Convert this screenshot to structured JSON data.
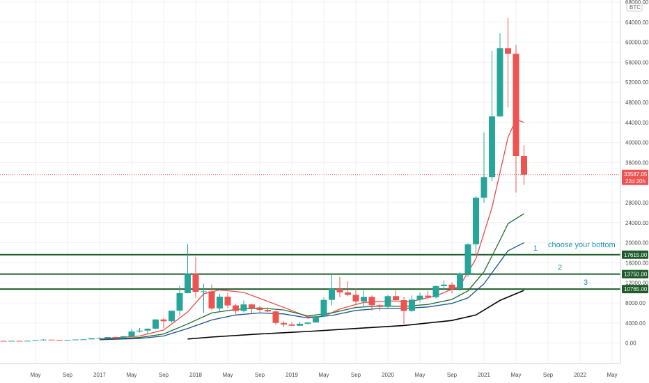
{
  "chart_data": {
    "type": "candlestick",
    "symbol": "BTC",
    "y_scale": "log",
    "ylim": [
      -2000,
      68000
    ],
    "grid": true,
    "y_ticks": [
      0,
      4000,
      8000,
      12000,
      16000,
      20000,
      24000,
      28000,
      32000,
      36000,
      40000,
      44000,
      48000,
      52000,
      56000,
      60000,
      64000,
      68000
    ],
    "y_tick_labels": [
      "0.00",
      "4000.00",
      "8000.00",
      "12000.00",
      "16000.00",
      "20000.00",
      "24000.00",
      "28000.00",
      "32000.00",
      "36000.00",
      "40000.00",
      "44000.00",
      "48000.00",
      "52000.00",
      "56000.00",
      "60000.00",
      "64000.00",
      "68000.00"
    ],
    "x_tick_labels": [
      "May",
      "Sep",
      "2017",
      "May",
      "Sep",
      "2018",
      "May",
      "Sep",
      "2019",
      "May",
      "Sep",
      "2020",
      "May",
      "Sep",
      "2021",
      "May",
      "Sep",
      "2022",
      "May"
    ],
    "x_ticks": [
      "2016-05",
      "2016-09",
      "2017-01",
      "2017-05",
      "2017-09",
      "2018-01",
      "2018-05",
      "2018-09",
      "2019-01",
      "2019-05",
      "2019-09",
      "2020-01",
      "2020-05",
      "2020-09",
      "2021-01",
      "2021-05",
      "2021-09",
      "2022-01",
      "2022-05"
    ],
    "x_range": [
      "2016-01",
      "2022-05"
    ],
    "candles": [
      {
        "date": "2016-01",
        "open": 430,
        "high": 460,
        "low": 360,
        "close": 370
      },
      {
        "date": "2016-02",
        "open": 370,
        "high": 440,
        "low": 365,
        "close": 435
      },
      {
        "date": "2016-03",
        "open": 435,
        "high": 440,
        "low": 405,
        "close": 415
      },
      {
        "date": "2016-04",
        "open": 415,
        "high": 470,
        "low": 410,
        "close": 450
      },
      {
        "date": "2016-05",
        "open": 450,
        "high": 550,
        "low": 440,
        "close": 530
      },
      {
        "date": "2016-06",
        "open": 530,
        "high": 780,
        "low": 520,
        "close": 670
      },
      {
        "date": "2016-07",
        "open": 670,
        "high": 700,
        "low": 600,
        "close": 625
      },
      {
        "date": "2016-08",
        "open": 625,
        "high": 625,
        "low": 470,
        "close": 575
      },
      {
        "date": "2016-09",
        "open": 575,
        "high": 620,
        "low": 580,
        "close": 610
      },
      {
        "date": "2016-10",
        "open": 610,
        "high": 720,
        "low": 600,
        "close": 700
      },
      {
        "date": "2016-11",
        "open": 700,
        "high": 760,
        "low": 690,
        "close": 740
      },
      {
        "date": "2016-12",
        "open": 740,
        "high": 980,
        "low": 740,
        "close": 960
      },
      {
        "date": "2017-01",
        "open": 960,
        "high": 1150,
        "low": 750,
        "close": 970
      },
      {
        "date": "2017-02",
        "open": 970,
        "high": 1200,
        "low": 930,
        "close": 1190
      },
      {
        "date": "2017-03",
        "open": 1190,
        "high": 1300,
        "low": 890,
        "close": 1080
      },
      {
        "date": "2017-04",
        "open": 1080,
        "high": 1420,
        "low": 1060,
        "close": 1350
      },
      {
        "date": "2017-05",
        "open": 1350,
        "high": 2800,
        "low": 1330,
        "close": 2300
      },
      {
        "date": "2017-06",
        "open": 2300,
        "high": 3000,
        "low": 2100,
        "close": 2480
      },
      {
        "date": "2017-07",
        "open": 2480,
        "high": 2900,
        "low": 1800,
        "close": 2870
      },
      {
        "date": "2017-08",
        "open": 2870,
        "high": 4750,
        "low": 2700,
        "close": 4700
      },
      {
        "date": "2017-09",
        "open": 4700,
        "high": 4980,
        "low": 2950,
        "close": 4350
      },
      {
        "date": "2017-10",
        "open": 4350,
        "high": 6470,
        "low": 4100,
        "close": 6450
      },
      {
        "date": "2017-11",
        "open": 6450,
        "high": 11400,
        "low": 5500,
        "close": 9950
      },
      {
        "date": "2017-12",
        "open": 9950,
        "high": 19700,
        "low": 9900,
        "close": 13800
      },
      {
        "date": "2018-01",
        "open": 13800,
        "high": 17200,
        "low": 9000,
        "close": 10200
      },
      {
        "date": "2018-02",
        "open": 10200,
        "high": 11800,
        "low": 6000,
        "close": 10300
      },
      {
        "date": "2018-03",
        "open": 10300,
        "high": 11700,
        "low": 6600,
        "close": 6900
      },
      {
        "date": "2018-04",
        "open": 6900,
        "high": 9800,
        "low": 6400,
        "close": 9250
      },
      {
        "date": "2018-05",
        "open": 9250,
        "high": 10000,
        "low": 7000,
        "close": 7500
      },
      {
        "date": "2018-06",
        "open": 7500,
        "high": 7800,
        "low": 5800,
        "close": 6400
      },
      {
        "date": "2018-07",
        "open": 6400,
        "high": 8500,
        "low": 6100,
        "close": 7700
      },
      {
        "date": "2018-08",
        "open": 7700,
        "high": 7800,
        "low": 5900,
        "close": 7000
      },
      {
        "date": "2018-09",
        "open": 7000,
        "high": 7400,
        "low": 6100,
        "close": 6600
      },
      {
        "date": "2018-10",
        "open": 6600,
        "high": 7100,
        "low": 6200,
        "close": 6300
      },
      {
        "date": "2018-11",
        "open": 6300,
        "high": 6500,
        "low": 3600,
        "close": 4000
      },
      {
        "date": "2018-12",
        "open": 4000,
        "high": 4300,
        "low": 3200,
        "close": 3700
      },
      {
        "date": "2019-01",
        "open": 3700,
        "high": 4100,
        "low": 3400,
        "close": 3450
      },
      {
        "date": "2019-02",
        "open": 3450,
        "high": 4200,
        "low": 3400,
        "close": 3850
      },
      {
        "date": "2019-03",
        "open": 3850,
        "high": 4100,
        "low": 3700,
        "close": 4100
      },
      {
        "date": "2019-04",
        "open": 4100,
        "high": 5600,
        "low": 4050,
        "close": 5300
      },
      {
        "date": "2019-05",
        "open": 5300,
        "high": 9100,
        "low": 5200,
        "close": 8600
      },
      {
        "date": "2019-06",
        "open": 8600,
        "high": 13900,
        "low": 7500,
        "close": 10800
      },
      {
        "date": "2019-07",
        "open": 10800,
        "high": 13200,
        "low": 9100,
        "close": 10100
      },
      {
        "date": "2019-08",
        "open": 10100,
        "high": 12300,
        "low": 9300,
        "close": 9600
      },
      {
        "date": "2019-09",
        "open": 9600,
        "high": 10900,
        "low": 7800,
        "close": 8300
      },
      {
        "date": "2019-10",
        "open": 8300,
        "high": 10500,
        "low": 7300,
        "close": 9200
      },
      {
        "date": "2019-11",
        "open": 9200,
        "high": 9500,
        "low": 6500,
        "close": 7550
      },
      {
        "date": "2019-12",
        "open": 7550,
        "high": 7800,
        "low": 6400,
        "close": 7200
      },
      {
        "date": "2020-01",
        "open": 7200,
        "high": 9600,
        "low": 6900,
        "close": 9350
      },
      {
        "date": "2020-02",
        "open": 9350,
        "high": 10500,
        "low": 8500,
        "close": 8550
      },
      {
        "date": "2020-03",
        "open": 8550,
        "high": 9200,
        "low": 3800,
        "close": 6400
      },
      {
        "date": "2020-04",
        "open": 6400,
        "high": 9500,
        "low": 6200,
        "close": 8650
      },
      {
        "date": "2020-05",
        "open": 8650,
        "high": 10100,
        "low": 8100,
        "close": 9450
      },
      {
        "date": "2020-06",
        "open": 9450,
        "high": 10400,
        "low": 8900,
        "close": 9150
      },
      {
        "date": "2020-07",
        "open": 9150,
        "high": 11500,
        "low": 8900,
        "close": 11350
      },
      {
        "date": "2020-08",
        "open": 11350,
        "high": 12500,
        "low": 10500,
        "close": 11650
      },
      {
        "date": "2020-09",
        "open": 11650,
        "high": 12100,
        "low": 9900,
        "close": 10800
      },
      {
        "date": "2020-10",
        "open": 10800,
        "high": 14100,
        "low": 10400,
        "close": 13800
      },
      {
        "date": "2020-11",
        "open": 13800,
        "high": 19900,
        "low": 13200,
        "close": 19700
      },
      {
        "date": "2020-12",
        "open": 19700,
        "high": 29300,
        "low": 17600,
        "close": 29000
      },
      {
        "date": "2021-01",
        "open": 29000,
        "high": 42000,
        "low": 28000,
        "close": 33100
      },
      {
        "date": "2021-02",
        "open": 33100,
        "high": 58300,
        "low": 32300,
        "close": 45200
      },
      {
        "date": "2021-03",
        "open": 45200,
        "high": 61800,
        "low": 45100,
        "close": 58800
      },
      {
        "date": "2021-04",
        "open": 58800,
        "high": 64900,
        "low": 47000,
        "close": 57700
      },
      {
        "date": "2021-05",
        "open": 57700,
        "high": 59500,
        "low": 30000,
        "close": 37300
      },
      {
        "date": "2021-06",
        "open": 37300,
        "high": 39500,
        "low": 31500,
        "close": 33587
      }
    ],
    "ma_lines": [
      {
        "color": "#e84a4a",
        "values": [
          {
            "date": "2017-01",
            "value": 800
          },
          {
            "date": "2017-06",
            "value": 1400
          },
          {
            "date": "2017-09",
            "value": 2600
          },
          {
            "date": "2017-12",
            "value": 6200
          },
          {
            "date": "2018-02",
            "value": 9800
          },
          {
            "date": "2018-04",
            "value": 10600
          },
          {
            "date": "2018-07",
            "value": 10100
          },
          {
            "date": "2018-10",
            "value": 8300
          },
          {
            "date": "2019-01",
            "value": 6500
          },
          {
            "date": "2019-03",
            "value": 5200
          },
          {
            "date": "2019-05",
            "value": 5300
          },
          {
            "date": "2019-07",
            "value": 6800
          },
          {
            "date": "2019-10",
            "value": 8100
          },
          {
            "date": "2020-01",
            "value": 8400
          },
          {
            "date": "2020-04",
            "value": 8300
          },
          {
            "date": "2020-07",
            "value": 9400
          },
          {
            "date": "2020-10",
            "value": 11400
          },
          {
            "date": "2020-12",
            "value": 16800
          },
          {
            "date": "2021-02",
            "value": 27000
          },
          {
            "date": "2021-04",
            "value": 41000
          },
          {
            "date": "2021-05",
            "value": 44600
          },
          {
            "date": "2021-06",
            "value": 44000
          }
        ]
      },
      {
        "color": "#1e6a32",
        "values": [
          {
            "date": "2017-01",
            "value": 700
          },
          {
            "date": "2017-06",
            "value": 1100
          },
          {
            "date": "2017-09",
            "value": 1800
          },
          {
            "date": "2017-12",
            "value": 3800
          },
          {
            "date": "2018-03",
            "value": 6000
          },
          {
            "date": "2018-06",
            "value": 6700
          },
          {
            "date": "2018-09",
            "value": 7000
          },
          {
            "date": "2018-12",
            "value": 6600
          },
          {
            "date": "2019-03",
            "value": 5400
          },
          {
            "date": "2019-06",
            "value": 6000
          },
          {
            "date": "2019-09",
            "value": 7100
          },
          {
            "date": "2019-12",
            "value": 7400
          },
          {
            "date": "2020-03",
            "value": 7300
          },
          {
            "date": "2020-06",
            "value": 7700
          },
          {
            "date": "2020-09",
            "value": 8700
          },
          {
            "date": "2020-11",
            "value": 10400
          },
          {
            "date": "2021-01",
            "value": 14200
          },
          {
            "date": "2021-03",
            "value": 20500
          },
          {
            "date": "2021-04",
            "value": 23800
          },
          {
            "date": "2021-06",
            "value": 25800
          }
        ]
      },
      {
        "color": "#17518a",
        "values": [
          {
            "date": "2017-01",
            "value": 650
          },
          {
            "date": "2017-06",
            "value": 900
          },
          {
            "date": "2017-09",
            "value": 1400
          },
          {
            "date": "2017-12",
            "value": 2900
          },
          {
            "date": "2018-03",
            "value": 4600
          },
          {
            "date": "2018-06",
            "value": 5600
          },
          {
            "date": "2018-09",
            "value": 6000
          },
          {
            "date": "2018-12",
            "value": 5800
          },
          {
            "date": "2019-03",
            "value": 5000
          },
          {
            "date": "2019-06",
            "value": 5500
          },
          {
            "date": "2019-09",
            "value": 6500
          },
          {
            "date": "2019-12",
            "value": 6900
          },
          {
            "date": "2020-03",
            "value": 6900
          },
          {
            "date": "2020-06",
            "value": 7200
          },
          {
            "date": "2020-09",
            "value": 7900
          },
          {
            "date": "2020-11",
            "value": 9000
          },
          {
            "date": "2021-01",
            "value": 11800
          },
          {
            "date": "2021-03",
            "value": 16200
          },
          {
            "date": "2021-04",
            "value": 18400
          },
          {
            "date": "2021-06",
            "value": 20000
          }
        ]
      },
      {
        "color": "#000000",
        "values": [
          {
            "date": "2017-12",
            "value": 800
          },
          {
            "date": "2018-03",
            "value": 1200
          },
          {
            "date": "2018-09",
            "value": 1800
          },
          {
            "date": "2019-03",
            "value": 2300
          },
          {
            "date": "2019-09",
            "value": 2900
          },
          {
            "date": "2020-03",
            "value": 3500
          },
          {
            "date": "2020-09",
            "value": 4500
          },
          {
            "date": "2020-12",
            "value": 5600
          },
          {
            "date": "2021-03",
            "value": 8500
          },
          {
            "date": "2021-06",
            "value": 10500
          }
        ]
      }
    ],
    "horizontal_levels": [
      {
        "value": 17615,
        "label": "17615.00",
        "index": "1"
      },
      {
        "value": 13750,
        "label": "13750.00",
        "index": "2"
      },
      {
        "value": 10765,
        "label": "10765.00",
        "index": "3"
      }
    ],
    "current_price": {
      "value": 33587.05,
      "label": "33587.05",
      "countdown": "22d 20h"
    },
    "annotation": "choose your bottom",
    "colors": {
      "up": "#26a69a",
      "down": "#ef5350",
      "level": "#1e5b2a",
      "price_tag": "#ef5350",
      "grid": "#eef0f3",
      "annotation": "#1e8fb4"
    }
  }
}
